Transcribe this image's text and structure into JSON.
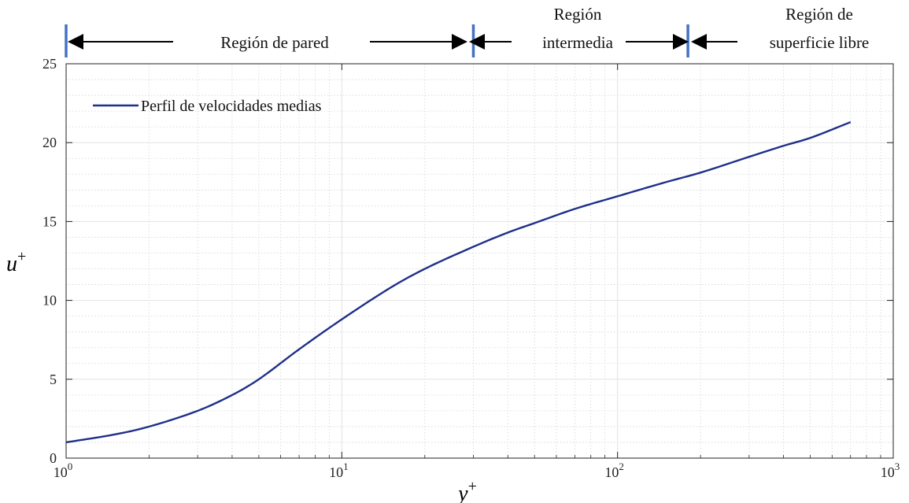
{
  "chart_data": {
    "type": "line",
    "x_scale": "log",
    "xlim": [
      1,
      1000
    ],
    "ylim": [
      0,
      25
    ],
    "grid": true,
    "minor_grid": true,
    "xlabel": "y",
    "xlabel_sup": "+",
    "ylabel": "u",
    "ylabel_sup": "+",
    "x_ticks": [
      {
        "base": "10",
        "exp": "0",
        "value": 1
      },
      {
        "base": "10",
        "exp": "1",
        "value": 10
      },
      {
        "base": "10",
        "exp": "2",
        "value": 100
      },
      {
        "base": "10",
        "exp": "3",
        "value": 1000
      }
    ],
    "y_ticks": [
      {
        "label": "0",
        "value": 0
      },
      {
        "label": "5",
        "value": 5
      },
      {
        "label": "10",
        "value": 10
      },
      {
        "label": "15",
        "value": 15
      },
      {
        "label": "20",
        "value": 20
      },
      {
        "label": "25",
        "value": 25
      }
    ],
    "legend_position": "top-left",
    "series": [
      {
        "name": "Perfil de velocidades medias",
        "color": "#1f2f8a",
        "x": [
          1,
          1.5,
          2,
          3,
          4,
          5,
          7,
          10,
          15,
          20,
          30,
          40,
          50,
          70,
          100,
          150,
          200,
          300,
          400,
          500,
          700
        ],
        "y": [
          1.0,
          1.5,
          2.0,
          3.0,
          4.0,
          5.0,
          6.9,
          8.8,
          10.8,
          12.0,
          13.4,
          14.3,
          14.9,
          15.8,
          16.6,
          17.5,
          18.1,
          19.1,
          19.8,
          20.3,
          21.3
        ]
      }
    ],
    "regions": [
      {
        "lines": [
          "Región de pared"
        ],
        "x_start": 1,
        "x_end": 30
      },
      {
        "lines": [
          "Región",
          "intermedia"
        ],
        "x_start": 30,
        "x_end": 180
      },
      {
        "lines": [
          "Región de",
          "superficie libre"
        ],
        "x_start": 180,
        "x_end": 1000
      }
    ],
    "region_boundaries": [
      1,
      30,
      180
    ],
    "region_marker_color": "#4472c4"
  }
}
